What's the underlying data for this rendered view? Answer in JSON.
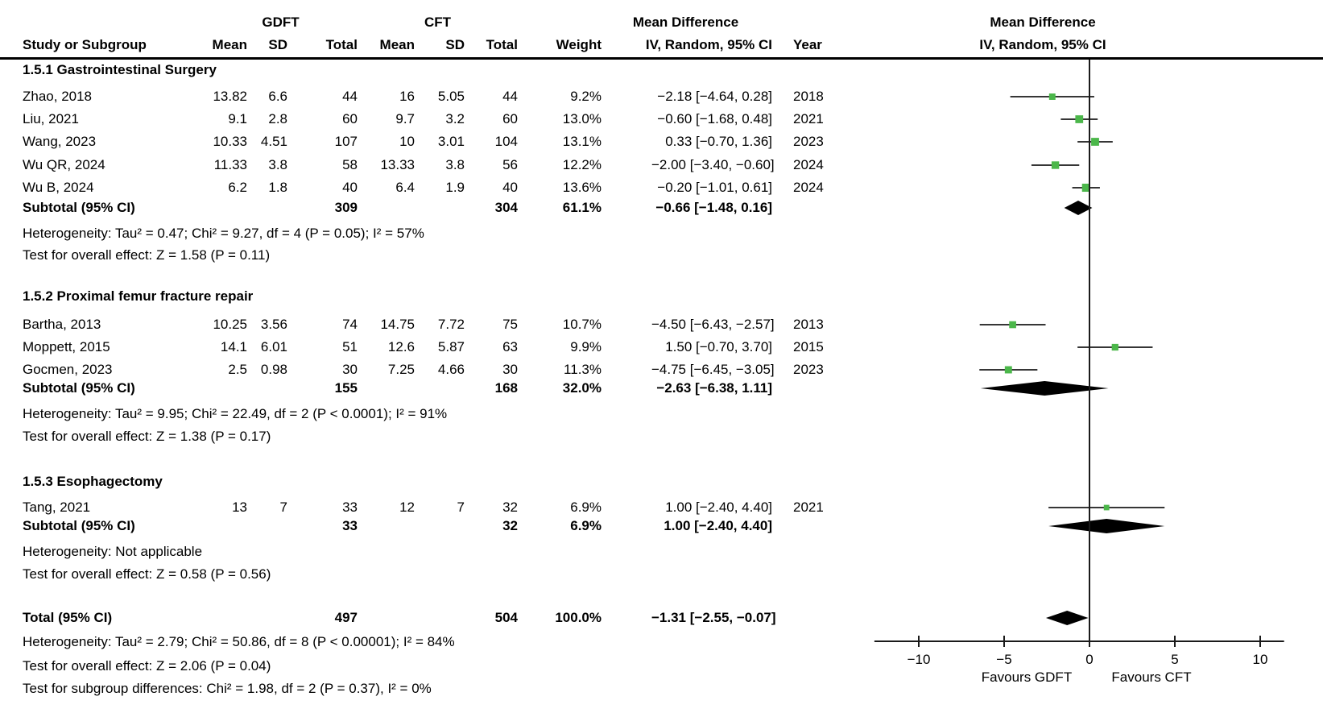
{
  "header": {
    "study_col": "Study or Subgroup",
    "group1": "GDFT",
    "group2": "CFT",
    "mean": "Mean",
    "sd": "SD",
    "total": "Total",
    "weight": "Weight",
    "md_title": "Mean Difference",
    "md_subtitle": "IV, Random, 95% CI",
    "year": "Year"
  },
  "plot_header": {
    "title": "Mean Difference",
    "subtitle": "IV, Random, 95% CI"
  },
  "colors": {
    "marker_green": "#4bb74a",
    "diamond_black": "#000000",
    "line_black": "#1a1a1a"
  },
  "chart_data": {
    "type": "forest",
    "effect_measure": "Mean Difference, IV, Random, 95% CI",
    "x_ticks": [
      -10,
      -5,
      0,
      5,
      10
    ],
    "x_range": [
      -12.6,
      11.4
    ],
    "favours_left": "Favours GDFT",
    "favours_right": "Favours CFT",
    "sections": [
      {
        "title": "1.5.1 Gastrointestinal Surgery",
        "studies": [
          {
            "name": "Zhao, 2018",
            "g_mean": "13.82",
            "g_sd": "6.6",
            "g_total": "44",
            "c_mean": "16",
            "c_sd": "5.05",
            "c_total": "44",
            "weight_pct": 9.2,
            "weight": "9.2%",
            "est": -2.18,
            "lo": -4.64,
            "hi": 0.28,
            "ci_text": "−2.18 [−4.64, 0.28]",
            "year": "2018"
          },
          {
            "name": "Liu, 2021",
            "g_mean": "9.1",
            "g_sd": "2.8",
            "g_total": "60",
            "c_mean": "9.7",
            "c_sd": "3.2",
            "c_total": "60",
            "weight_pct": 13.0,
            "weight": "13.0%",
            "est": -0.6,
            "lo": -1.68,
            "hi": 0.48,
            "ci_text": "−0.60 [−1.68, 0.48]",
            "year": "2021"
          },
          {
            "name": "Wang, 2023",
            "g_mean": "10.33",
            "g_sd": "4.51",
            "g_total": "107",
            "c_mean": "10",
            "c_sd": "3.01",
            "c_total": "104",
            "weight_pct": 13.1,
            "weight": "13.1%",
            "est": 0.33,
            "lo": -0.7,
            "hi": 1.36,
            "ci_text": "0.33 [−0.70, 1.36]",
            "year": "2023"
          },
          {
            "name": "Wu QR, 2024",
            "g_mean": "11.33",
            "g_sd": "3.8",
            "g_total": "58",
            "c_mean": "13.33",
            "c_sd": "3.8",
            "c_total": "56",
            "weight_pct": 12.2,
            "weight": "12.2%",
            "est": -2.0,
            "lo": -3.4,
            "hi": -0.6,
            "ci_text": "−2.00 [−3.40, −0.60]",
            "year": "2024"
          },
          {
            "name": "Wu B, 2024",
            "g_mean": "6.2",
            "g_sd": "1.8",
            "g_total": "40",
            "c_mean": "6.4",
            "c_sd": "1.9",
            "c_total": "40",
            "weight_pct": 13.6,
            "weight": "13.6%",
            "est": -0.2,
            "lo": -1.01,
            "hi": 0.61,
            "ci_text": "−0.20 [−1.01, 0.61]",
            "year": "2024"
          }
        ],
        "subtotal": {
          "label": "Subtotal (95% CI)",
          "g_total": "309",
          "c_total": "304",
          "weight": "61.1%",
          "est": -0.66,
          "lo": -1.48,
          "hi": 0.16,
          "ci_text": "−0.66 [−1.48, 0.16]"
        },
        "heterogeneity": "Heterogeneity: Tau² = 0.47; Chi² = 9.27, df = 4 (P = 0.05); I² = 57%",
        "overall_effect": "Test for overall effect: Z = 1.58 (P = 0.11)"
      },
      {
        "title": "1.5.2 Proximal femur fracture repair",
        "studies": [
          {
            "name": "Bartha, 2013",
            "g_mean": "10.25",
            "g_sd": "3.56",
            "g_total": "74",
            "c_mean": "14.75",
            "c_sd": "7.72",
            "c_total": "75",
            "weight_pct": 10.7,
            "weight": "10.7%",
            "est": -4.5,
            "lo": -6.43,
            "hi": -2.57,
            "ci_text": "−4.50 [−6.43, −2.57]",
            "year": "2013"
          },
          {
            "name": "Moppett, 2015",
            "g_mean": "14.1",
            "g_sd": "6.01",
            "g_total": "51",
            "c_mean": "12.6",
            "c_sd": "5.87",
            "c_total": "63",
            "weight_pct": 9.9,
            "weight": "9.9%",
            "est": 1.5,
            "lo": -0.7,
            "hi": 3.7,
            "ci_text": "1.50 [−0.70, 3.70]",
            "year": "2015"
          },
          {
            "name": "Gocmen, 2023",
            "g_mean": "2.5",
            "g_sd": "0.98",
            "g_total": "30",
            "c_mean": "7.25",
            "c_sd": "4.66",
            "c_total": "30",
            "weight_pct": 11.3,
            "weight": "11.3%",
            "est": -4.75,
            "lo": -6.45,
            "hi": -3.05,
            "ci_text": "−4.75 [−6.45, −3.05]",
            "year": "2023"
          }
        ],
        "subtotal": {
          "label": "Subtotal (95% CI)",
          "g_total": "155",
          "c_total": "168",
          "weight": "32.0%",
          "est": -2.63,
          "lo": -6.38,
          "hi": 1.11,
          "ci_text": "−2.63 [−6.38, 1.11]"
        },
        "heterogeneity": "Heterogeneity: Tau² = 9.95; Chi² = 22.49, df = 2 (P < 0.0001); I² = 91%",
        "overall_effect": "Test for overall effect: Z = 1.38 (P = 0.17)"
      },
      {
        "title": "1.5.3 Esophagectomy",
        "studies": [
          {
            "name": "Tang, 2021",
            "g_mean": "13",
            "g_sd": "7",
            "g_total": "33",
            "c_mean": "12",
            "c_sd": "7",
            "c_total": "32",
            "weight_pct": 6.9,
            "weight": "6.9%",
            "est": 1.0,
            "lo": -2.4,
            "hi": 4.4,
            "ci_text": "1.00 [−2.40, 4.40]",
            "year": "2021"
          }
        ],
        "subtotal": {
          "label": "Subtotal (95% CI)",
          "g_total": "33",
          "c_total": "32",
          "weight": "6.9%",
          "est": 1.0,
          "lo": -2.4,
          "hi": 4.4,
          "ci_text": "1.00 [−2.40, 4.40]"
        },
        "heterogeneity": "Heterogeneity: Not applicable",
        "overall_effect": "Test for overall effect: Z = 0.58 (P = 0.56)"
      }
    ],
    "total": {
      "label": "Total (95% CI)",
      "g_total": "497",
      "c_total": "504",
      "weight": "100.0%",
      "est": -1.31,
      "lo": -2.55,
      "hi": -0.07,
      "ci_text": "−1.31 [−2.55, −0.07]"
    },
    "footnotes": [
      "Heterogeneity: Tau² = 2.79; Chi² = 50.86, df = 8 (P < 0.00001); I² = 84%",
      "Test for overall effect: Z = 2.06 (P = 0.04)",
      "Test for subgroup differences: Chi² = 1.98, df = 2 (P = 0.37), I² = 0%"
    ]
  }
}
